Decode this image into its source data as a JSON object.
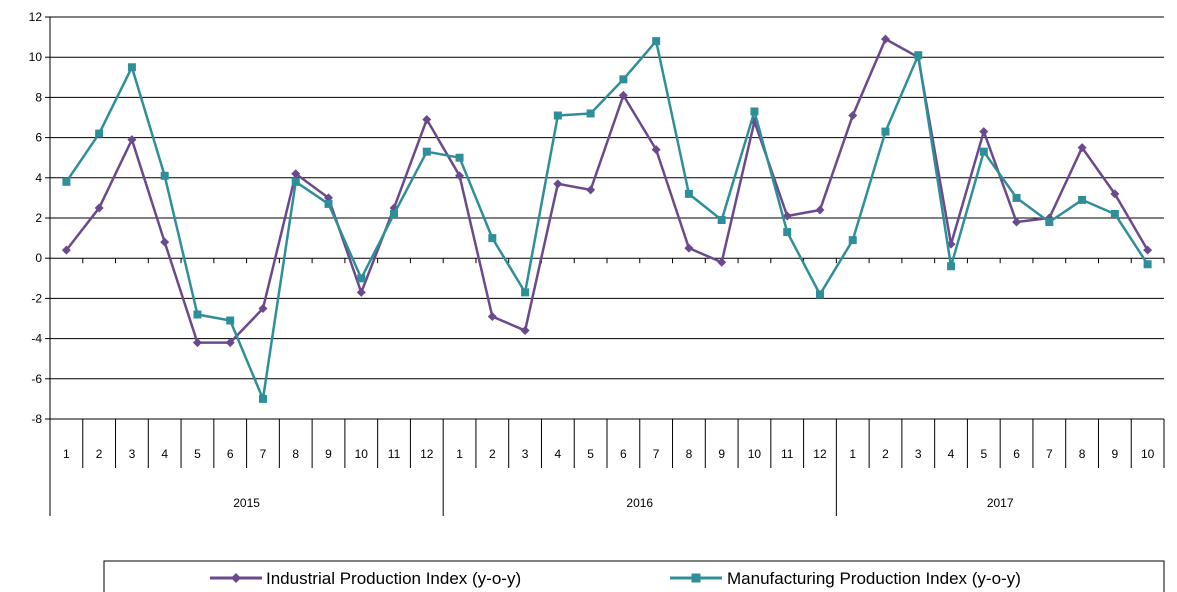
{
  "chart_data": {
    "type": "line",
    "title": "",
    "xlabel": "",
    "ylabel": "",
    "ylim": [
      -8,
      12
    ],
    "y_ticks": [
      -8,
      -6,
      -4,
      -2,
      0,
      2,
      4,
      6,
      8,
      10,
      12
    ],
    "grid": "horizontal",
    "legend_position": "bottom",
    "month_labels": [
      "1",
      "2",
      "3",
      "4",
      "5",
      "6",
      "7",
      "8",
      "9",
      "10",
      "11",
      "12",
      "1",
      "2",
      "3",
      "4",
      "5",
      "6",
      "7",
      "8",
      "9",
      "10",
      "11",
      "12",
      "1",
      "2",
      "3",
      "4",
      "5",
      "6",
      "7",
      "8",
      "9",
      "10"
    ],
    "year_groups": [
      {
        "label": "2015",
        "count": 12
      },
      {
        "label": "2016",
        "count": 12
      },
      {
        "label": "2017",
        "count": 10
      }
    ],
    "series": [
      {
        "name": "Industrial Production Index (y-o-y)",
        "color": "#6A4A8C",
        "marker": "diamond",
        "values": [
          0.4,
          2.5,
          5.9,
          0.8,
          -4.2,
          -4.2,
          -2.5,
          4.2,
          3.0,
          -1.7,
          2.5,
          6.9,
          4.1,
          -2.9,
          -3.6,
          3.7,
          3.4,
          8.1,
          5.4,
          0.5,
          -0.2,
          6.8,
          2.1,
          2.4,
          7.1,
          10.9,
          10.0,
          0.7,
          6.3,
          1.8,
          2.0,
          5.5,
          3.2,
          0.4
        ]
      },
      {
        "name": "Manufacturing Production Index (y-o-y)",
        "color": "#2F8F98",
        "marker": "square",
        "values": [
          3.8,
          6.2,
          9.5,
          4.1,
          -2.8,
          -3.1,
          -7.0,
          3.8,
          2.7,
          -1.0,
          2.2,
          5.3,
          5.0,
          1.0,
          -1.7,
          7.1,
          7.2,
          8.9,
          10.8,
          3.2,
          1.9,
          7.3,
          1.3,
          -1.8,
          0.9,
          6.3,
          10.1,
          -0.4,
          5.3,
          3.0,
          1.8,
          2.9,
          2.2,
          -0.3
        ]
      }
    ]
  }
}
